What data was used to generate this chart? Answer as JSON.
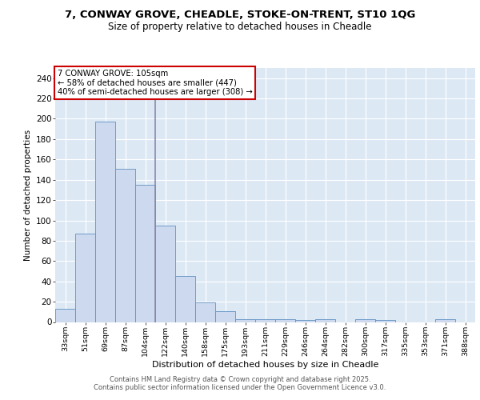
{
  "title_line1": "7, CONWAY GROVE, CHEADLE, STOKE-ON-TRENT, ST10 1QG",
  "title_line2": "Size of property relative to detached houses in Cheadle",
  "xlabel": "Distribution of detached houses by size in Cheadle",
  "ylabel": "Number of detached properties",
  "bar_labels": [
    "33sqm",
    "51sqm",
    "69sqm",
    "87sqm",
    "104sqm",
    "122sqm",
    "140sqm",
    "158sqm",
    "175sqm",
    "193sqm",
    "211sqm",
    "229sqm",
    "246sqm",
    "264sqm",
    "282sqm",
    "300sqm",
    "317sqm",
    "335sqm",
    "353sqm",
    "371sqm",
    "388sqm"
  ],
  "bar_values": [
    13,
    87,
    197,
    151,
    135,
    95,
    45,
    19,
    11,
    3,
    3,
    3,
    2,
    3,
    0,
    3,
    2,
    0,
    0,
    3,
    0
  ],
  "bar_color": "#cdd9ee",
  "bar_edge_color": "#6090c0",
  "vline_index": 4,
  "vline_color": "#8888aa",
  "annotation_text": "7 CONWAY GROVE: 105sqm\n← 58% of detached houses are smaller (447)\n40% of semi-detached houses are larger (308) →",
  "annotation_box_color": "white",
  "annotation_box_edge_color": "#cc0000",
  "ylim": [
    0,
    250
  ],
  "yticks": [
    0,
    20,
    40,
    60,
    80,
    100,
    120,
    140,
    160,
    180,
    200,
    220,
    240
  ],
  "background_color": "#dde8f5",
  "grid_color": "white",
  "footer_line1": "Contains HM Land Registry data © Crown copyright and database right 2025.",
  "footer_line2": "Contains public sector information licensed under the Open Government Licence v3.0."
}
